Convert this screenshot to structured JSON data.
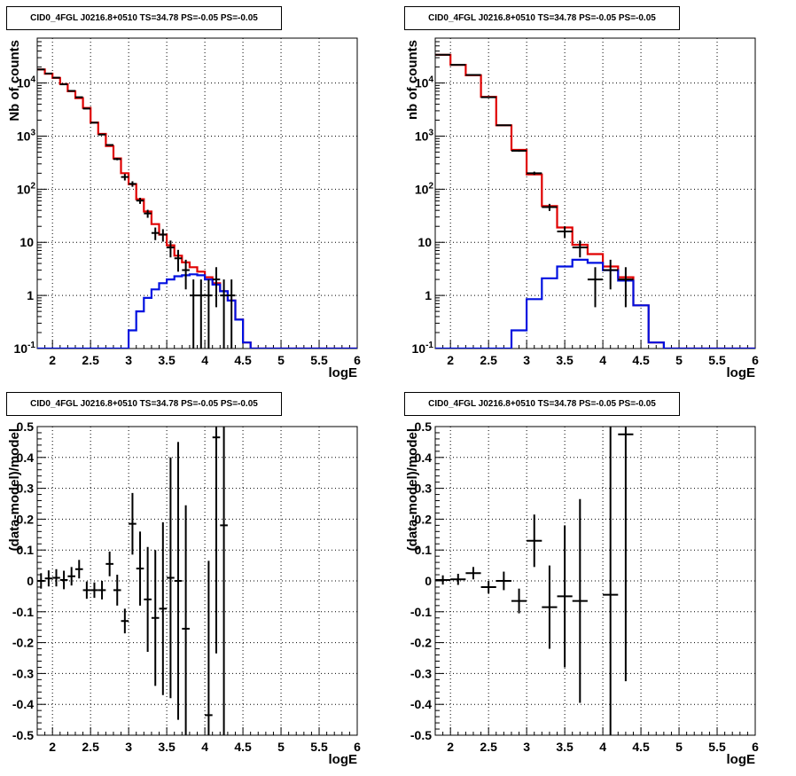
{
  "colors": {
    "data": "#000000",
    "total_model": "#e00000",
    "source_model": "#0010e0",
    "grid": "#000000",
    "frame": "#000000"
  },
  "chart_data": [
    {
      "id": "top-left",
      "type": "step-histogram-with-errorbars",
      "title": "CID0_4FGL J0216.8+0510 TS=34.78 PS=-0.05 PS=-0.05",
      "xlabel": "logE",
      "ylabel": "Nb of counts",
      "xlim": [
        1.8,
        6
      ],
      "ylim": [
        0.1,
        70000
      ],
      "yscale": "log",
      "grid": true,
      "xticks": [
        "2",
        "2.5",
        "3",
        "3.5",
        "4",
        "4.5",
        "5",
        "5.5",
        "6"
      ],
      "yticks": [
        "10^-1",
        "1",
        "10",
        "10^2",
        "10^3",
        "10^4"
      ],
      "bin_edges": [
        1.8,
        1.9,
        2.0,
        2.1,
        2.2,
        2.3,
        2.4,
        2.5,
        2.6,
        2.7,
        2.8,
        2.9,
        3.0,
        3.1,
        3.2,
        3.3,
        3.4,
        3.5,
        3.6,
        3.7,
        3.8,
        3.9,
        4.0,
        4.1,
        4.2,
        4.3,
        4.4,
        4.5,
        4.6,
        4.7,
        4.8,
        4.9,
        5.0,
        5.1,
        5.2,
        5.3,
        5.4,
        5.5,
        5.6,
        5.7,
        5.8,
        5.9,
        6.0
      ],
      "series": [
        {
          "role": "total_model",
          "values": [
            18000,
            15000,
            12500,
            9500,
            7000,
            5200,
            3400,
            1800,
            1100,
            650,
            380,
            200,
            125,
            65,
            38,
            22,
            14,
            8.8,
            5.6,
            4.2,
            3.4,
            2.8,
            2.2,
            1.7,
            1.2,
            0.8,
            0.35,
            0.13,
            0.1,
            0.1,
            0.1,
            0.1,
            0.1,
            0.1,
            0.1,
            0.1,
            0.1,
            0.1,
            0.1,
            0.1,
            0.1,
            0.1
          ]
        },
        {
          "role": "source_model",
          "values": [
            0.1,
            0.1,
            0.1,
            0.1,
            0.1,
            0.1,
            0.1,
            0.1,
            0.1,
            0.1,
            0.1,
            0.1,
            0.22,
            0.5,
            0.9,
            1.3,
            1.7,
            2.0,
            2.3,
            2.4,
            2.5,
            2.4,
            2.0,
            1.6,
            1.2,
            0.8,
            0.35,
            0.13,
            0.1,
            0.1,
            0.1,
            0.1,
            0.1,
            0.1,
            0.1,
            0.1,
            0.1,
            0.1,
            0.1,
            0.1,
            0.1,
            0.1
          ]
        }
      ],
      "points": [
        {
          "x": 1.85,
          "y": 18000,
          "err": 134
        },
        {
          "x": 1.95,
          "y": 15100,
          "err": 123
        },
        {
          "x": 2.05,
          "y": 12600,
          "err": 112
        },
        {
          "x": 2.15,
          "y": 9450,
          "err": 97
        },
        {
          "x": 2.25,
          "y": 7100,
          "err": 84
        },
        {
          "x": 2.35,
          "y": 5400,
          "err": 73
        },
        {
          "x": 2.45,
          "y": 3300,
          "err": 57
        },
        {
          "x": 2.55,
          "y": 1790,
          "err": 42
        },
        {
          "x": 2.65,
          "y": 1070,
          "err": 33
        },
        {
          "x": 2.75,
          "y": 680,
          "err": 26
        },
        {
          "x": 2.85,
          "y": 370,
          "err": 19
        },
        {
          "x": 2.95,
          "y": 170,
          "err": 24
        },
        {
          "x": 3.05,
          "y": 126,
          "err": 15
        },
        {
          "x": 3.15,
          "y": 61,
          "err": 8
        },
        {
          "x": 3.25,
          "y": 35,
          "err": 6
        },
        {
          "x": 3.35,
          "y": 15,
          "err": 4
        },
        {
          "x": 3.45,
          "y": 14,
          "err": 3.7
        },
        {
          "x": 3.55,
          "y": 8,
          "err": 2.8
        },
        {
          "x": 3.65,
          "y": 5,
          "err": 2.2
        },
        {
          "x": 3.75,
          "y": 3,
          "err": 1.7
        },
        {
          "x": 3.85,
          "y": 1,
          "err": 1
        },
        {
          "x": 3.95,
          "y": 1,
          "err": 1
        },
        {
          "x": 4.05,
          "y": 1,
          "err": 1
        },
        {
          "x": 4.15,
          "y": 2,
          "err": 1.4
        },
        {
          "x": 4.25,
          "y": 1,
          "err": 1
        },
        {
          "x": 4.35,
          "y": 1,
          "err": 1
        }
      ]
    },
    {
      "id": "top-right",
      "type": "step-histogram-with-errorbars",
      "title": "CID0_4FGL J0216.8+0510 TS=34.78 PS=-0.05 PS=-0.05",
      "xlabel": "logE",
      "ylabel": "nb of counts",
      "xlim": [
        1.8,
        6
      ],
      "ylim": [
        0.1,
        70000
      ],
      "yscale": "log",
      "grid": true,
      "xticks": [
        "2",
        "2.5",
        "3",
        "3.5",
        "4",
        "4.5",
        "5",
        "5.5",
        "6"
      ],
      "yticks": [
        "10^-1",
        "1",
        "10",
        "10^2",
        "10^3",
        "10^4"
      ],
      "bin_edges": [
        1.8,
        2.0,
        2.2,
        2.4,
        2.6,
        2.8,
        3.0,
        3.2,
        3.4,
        3.6,
        3.8,
        4.0,
        4.2,
        4.4,
        4.6,
        4.8,
        5.0,
        5.2,
        5.4,
        5.6,
        5.8,
        6.0
      ],
      "series": [
        {
          "role": "total_model",
          "values": [
            34000,
            22000,
            14000,
            5500,
            1600,
            550,
            190,
            48,
            19,
            9,
            6,
            3.5,
            2.2,
            0.65,
            0.13,
            0.1,
            0.1,
            0.1,
            0.1,
            0.1,
            0.1
          ]
        },
        {
          "role": "source_model",
          "values": [
            0.1,
            0.1,
            0.1,
            0.1,
            0.1,
            0.22,
            0.85,
            2.1,
            3.5,
            4.7,
            4.1,
            3.0,
            1.9,
            0.65,
            0.13,
            0.1,
            0.1,
            0.1,
            0.1,
            0.1,
            0.1
          ]
        }
      ],
      "points": [
        {
          "x": 1.9,
          "y": 34100,
          "err": 185
        },
        {
          "x": 2.1,
          "y": 22000,
          "err": 148
        },
        {
          "x": 2.3,
          "y": 14200,
          "err": 119
        },
        {
          "x": 2.5,
          "y": 5400,
          "err": 73
        },
        {
          "x": 2.7,
          "y": 1600,
          "err": 40
        },
        {
          "x": 2.9,
          "y": 530,
          "err": 23
        },
        {
          "x": 3.1,
          "y": 200,
          "err": 14
        },
        {
          "x": 3.3,
          "y": 46,
          "err": 7
        },
        {
          "x": 3.5,
          "y": 16,
          "err": 4
        },
        {
          "x": 3.7,
          "y": 8,
          "err": 2.8
        },
        {
          "x": 3.9,
          "y": 2,
          "err": 1.4
        },
        {
          "x": 4.1,
          "y": 3,
          "err": 1.7
        },
        {
          "x": 4.3,
          "y": 2,
          "err": 1.4
        }
      ]
    },
    {
      "id": "bottom-left",
      "type": "scatter-with-errorbars",
      "title": "CID0_4FGL J0216.8+0510 TS=34.78 PS=-0.05 PS=-0.05",
      "xlabel": "logE",
      "ylabel": "(data-model)/model",
      "xlim": [
        1.8,
        6
      ],
      "ylim": [
        -0.5,
        0.5
      ],
      "yscale": "linear",
      "grid": true,
      "xticks": [
        "2",
        "2.5",
        "3",
        "3.5",
        "4",
        "4.5",
        "5",
        "5.5",
        "6"
      ],
      "yticks": [
        "-0.5",
        "-0.4",
        "-0.3",
        "-0.2",
        "-0.1",
        "0",
        "0.1",
        "0.2",
        "0.3",
        "0.4",
        "0.5"
      ],
      "xerr": 0.05,
      "points": [
        {
          "x": 1.85,
          "y": 0.0,
          "err": 0.025
        },
        {
          "x": 1.95,
          "y": 0.008,
          "err": 0.026
        },
        {
          "x": 2.05,
          "y": 0.01,
          "err": 0.028
        },
        {
          "x": 2.15,
          "y": 0.003,
          "err": 0.03
        },
        {
          "x": 2.25,
          "y": 0.015,
          "err": 0.03
        },
        {
          "x": 2.35,
          "y": 0.038,
          "err": 0.03
        },
        {
          "x": 2.45,
          "y": -0.03,
          "err": 0.028
        },
        {
          "x": 2.55,
          "y": -0.03,
          "err": 0.025
        },
        {
          "x": 2.65,
          "y": -0.03,
          "err": 0.03
        },
        {
          "x": 2.75,
          "y": 0.055,
          "err": 0.04
        },
        {
          "x": 2.85,
          "y": -0.03,
          "err": 0.05
        },
        {
          "x": 2.95,
          "y": -0.13,
          "err": 0.04
        },
        {
          "x": 3.05,
          "y": 0.185,
          "err": 0.1
        },
        {
          "x": 3.15,
          "y": 0.04,
          "err": 0.12
        },
        {
          "x": 3.25,
          "y": -0.06,
          "err": 0.17
        },
        {
          "x": 3.35,
          "y": -0.12,
          "err": 0.22
        },
        {
          "x": 3.45,
          "y": -0.09,
          "err": 0.28
        },
        {
          "x": 3.55,
          "y": 0.01,
          "err": 0.39
        },
        {
          "x": 3.65,
          "y": 0.0,
          "err": 0.45
        },
        {
          "x": 3.75,
          "y": -0.155,
          "err": 0.4
        },
        {
          "x": 4.05,
          "y": -0.435,
          "err": 0.5
        },
        {
          "x": 4.15,
          "y": 0.465,
          "err": 0.7
        },
        {
          "x": 4.25,
          "y": 0.18,
          "err": 0.8
        }
      ]
    },
    {
      "id": "bottom-right",
      "type": "scatter-with-errorbars",
      "title": "CID0_4FGL J0216.8+0510 TS=34.78 PS=-0.05 PS=-0.05",
      "xlabel": "logE",
      "ylabel": "(data-model)/model",
      "xlim": [
        1.8,
        6
      ],
      "ylim": [
        -0.5,
        0.5
      ],
      "yscale": "linear",
      "grid": true,
      "xticks": [
        "2",
        "2.5",
        "3",
        "3.5",
        "4",
        "4.5",
        "5",
        "5.5",
        "6"
      ],
      "yticks": [
        "-0.5",
        "-0.4",
        "-0.3",
        "-0.2",
        "-0.1",
        "0",
        "0.1",
        "0.2",
        "0.3",
        "0.4",
        "0.5"
      ],
      "xerr": 0.1,
      "points": [
        {
          "x": 1.9,
          "y": 0.003,
          "err": 0.015
        },
        {
          "x": 2.1,
          "y": 0.005,
          "err": 0.018
        },
        {
          "x": 2.3,
          "y": 0.025,
          "err": 0.02
        },
        {
          "x": 2.5,
          "y": -0.02,
          "err": 0.02
        },
        {
          "x": 2.7,
          "y": 0.0,
          "err": 0.03
        },
        {
          "x": 2.9,
          "y": -0.065,
          "err": 0.04
        },
        {
          "x": 3.1,
          "y": 0.13,
          "err": 0.085
        },
        {
          "x": 3.3,
          "y": -0.085,
          "err": 0.135
        },
        {
          "x": 3.5,
          "y": -0.05,
          "err": 0.23
        },
        {
          "x": 3.7,
          "y": -0.065,
          "err": 0.33
        },
        {
          "x": 4.1,
          "y": -0.045,
          "err": 0.6
        },
        {
          "x": 4.3,
          "y": 0.475,
          "err": 0.8
        }
      ]
    }
  ]
}
